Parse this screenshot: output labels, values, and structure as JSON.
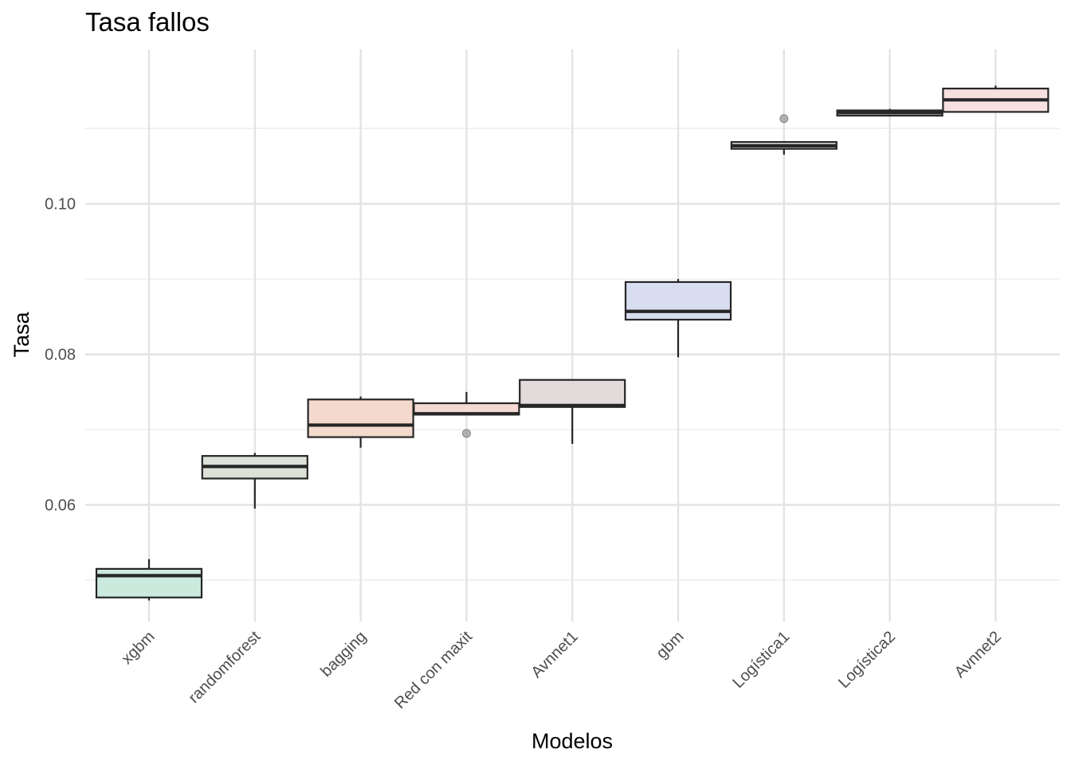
{
  "chart_data": {
    "type": "boxplot",
    "title": "Tasa fallos",
    "xlabel": "Modelos",
    "ylabel": "Tasa",
    "ylim": [
      0.0445,
      0.1205
    ],
    "yticks": [
      0.06,
      0.08,
      0.1
    ],
    "ytick_labels": [
      "0.06",
      "0.08",
      "0.10"
    ],
    "y_minor_grid": [
      0.05,
      0.07,
      0.09,
      0.11
    ],
    "grid": true,
    "legend": "none",
    "categories": [
      "xgbm",
      "randomforest",
      "bagging",
      "Red con maxit",
      "Avnnet1",
      "gbm",
      "Logística1",
      "Logística2",
      "Avnnet2"
    ],
    "boxes": [
      {
        "category": "xgbm",
        "low": 0.0473,
        "q1": 0.0477,
        "median": 0.0506,
        "q3": 0.0515,
        "high": 0.0528,
        "outliers": [],
        "fill": "#cce9de"
      },
      {
        "category": "randomforest",
        "low": 0.0595,
        "q1": 0.0635,
        "median": 0.0651,
        "q3": 0.0665,
        "high": 0.0669,
        "outliers": [],
        "fill": "#dde2d8"
      },
      {
        "category": "bagging",
        "low": 0.0676,
        "q1": 0.069,
        "median": 0.0706,
        "q3": 0.074,
        "high": 0.0744,
        "outliers": [],
        "fill": "#f4dacc"
      },
      {
        "category": "Red con maxit",
        "low": 0.072,
        "q1": 0.072,
        "median": 0.0721,
        "q3": 0.0735,
        "high": 0.075,
        "outliers": [
          0.0695
        ],
        "fill": "#f4dad3"
      },
      {
        "category": "Avnnet1",
        "low": 0.0681,
        "q1": 0.073,
        "median": 0.0732,
        "q3": 0.0766,
        "high": 0.0766,
        "outliers": [],
        "fill": "#e3dadb"
      },
      {
        "category": "gbm",
        "low": 0.0796,
        "q1": 0.0846,
        "median": 0.0857,
        "q3": 0.0896,
        "high": 0.09,
        "outliers": [],
        "fill": "#d9ddf0"
      },
      {
        "category": "Logística1",
        "low": 0.1065,
        "q1": 0.1073,
        "median": 0.1077,
        "q3": 0.1082,
        "high": 0.1082,
        "outliers": [
          0.1113
        ],
        "fill": "#dcdcdc"
      },
      {
        "category": "Logística2",
        "low": 0.1117,
        "q1": 0.1117,
        "median": 0.1121,
        "q3": 0.1124,
        "high": 0.1126,
        "outliers": [],
        "fill": "#e8e8e8"
      },
      {
        "category": "Avnnet2",
        "low": 0.1122,
        "q1": 0.1122,
        "median": 0.1138,
        "q3": 0.1153,
        "high": 0.1157,
        "outliers": [],
        "fill": "#f6e0e0"
      }
    ]
  }
}
